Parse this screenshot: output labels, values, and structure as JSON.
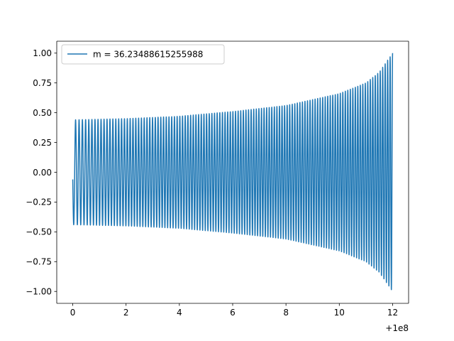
{
  "chart_data": {
    "type": "line",
    "title": "",
    "xlabel": "",
    "ylabel": "",
    "x_offset_label": "+1e8",
    "xlim": [
      -0.6,
      12.6
    ],
    "ylim": [
      -1.1,
      1.1
    ],
    "x_ticks": [
      0,
      2,
      4,
      6,
      8,
      10,
      12
    ],
    "x_tick_labels": [
      "0",
      "2",
      "4",
      "6",
      "8",
      "10",
      "12"
    ],
    "y_ticks": [
      -1.0,
      -0.75,
      -0.5,
      -0.25,
      0.0,
      0.25,
      0.5,
      0.75,
      1.0
    ],
    "y_tick_labels": [
      "−1.00",
      "−0.75",
      "−0.50",
      "−0.25",
      "0.00",
      "0.25",
      "0.50",
      "0.75",
      "1.00"
    ],
    "grid": false,
    "legend_position": "upper-left",
    "series": [
      {
        "name": "m = 36.23488615255988",
        "color": "#1f77b4",
        "x_range": [
          0,
          12
        ],
        "start_value": -0.06,
        "initial_amplitude": 0.44,
        "final_amplitude": 1.0,
        "cycles_visible": 120,
        "envelope_samples": {
          "x": [
            0,
            2,
            4,
            6,
            8,
            10,
            11,
            11.5,
            12
          ],
          "amplitude": [
            0.44,
            0.45,
            0.47,
            0.51,
            0.56,
            0.66,
            0.75,
            0.84,
            1.0
          ]
        }
      }
    ]
  }
}
